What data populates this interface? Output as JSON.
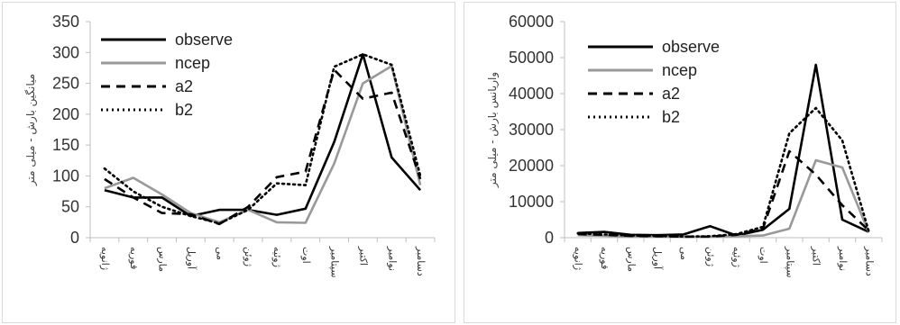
{
  "chart_data": [
    {
      "type": "line",
      "ylabel": "میانگین بارش - میلی متر",
      "ylim": [
        0,
        350
      ],
      "yticks": [
        0,
        50,
        100,
        150,
        200,
        250,
        300,
        350
      ],
      "categories": [
        "ژانویه",
        "فوریه",
        "مارس",
        "آوریل",
        "می",
        "ژوئن",
        "ژوئیه",
        "اوت",
        "سپتامبر",
        "اکتبر",
        "نوامبر",
        "دسامبر"
      ],
      "legend_position": "top-left",
      "grid": false,
      "series": [
        {
          "name": "observe",
          "color": "#000000",
          "style": "solid",
          "values": [
            77,
            65,
            65,
            35,
            45,
            45,
            37,
            47,
            155,
            297,
            130,
            77
          ]
        },
        {
          "name": "ncep",
          "color": "#999999",
          "style": "solid",
          "values": [
            80,
            97,
            70,
            40,
            25,
            45,
            25,
            24,
            120,
            250,
            278,
            85
          ]
        },
        {
          "name": "a2",
          "color": "#000000",
          "style": "dash",
          "values": [
            95,
            65,
            40,
            38,
            22,
            50,
            98,
            107,
            272,
            225,
            235,
            95
          ]
        },
        {
          "name": "b2",
          "color": "#000000",
          "style": "dot",
          "values": [
            112,
            75,
            50,
            35,
            23,
            45,
            88,
            85,
            277,
            297,
            280,
            100
          ]
        }
      ]
    },
    {
      "type": "line",
      "ylabel": "واریانس بارش - میلی متر",
      "ylim": [
        0,
        60000
      ],
      "yticks": [
        0,
        10000,
        20000,
        30000,
        40000,
        50000,
        60000
      ],
      "categories": [
        "ژانویه",
        "فوریه",
        "مارس",
        "آوریل",
        "می",
        "ژوئن",
        "ژوئیه",
        "اوت",
        "سپتامبر",
        "اکتبر",
        "نوامبر",
        "دسامبر"
      ],
      "legend_position": "top-left",
      "grid": false,
      "series": [
        {
          "name": "observe",
          "color": "#000000",
          "style": "solid",
          "values": [
            1300,
            1600,
            800,
            700,
            900,
            3200,
            600,
            2200,
            8000,
            48000,
            5000,
            1600
          ]
        },
        {
          "name": "ncep",
          "color": "#999999",
          "style": "solid",
          "values": [
            700,
            500,
            300,
            300,
            200,
            300,
            400,
            600,
            2500,
            21500,
            19500,
            1500
          ]
        },
        {
          "name": "a2",
          "color": "#000000",
          "style": "dash",
          "values": [
            1000,
            800,
            500,
            400,
            300,
            300,
            800,
            2500,
            24000,
            17500,
            9000,
            2000
          ]
        },
        {
          "name": "b2",
          "color": "#000000",
          "style": "dot",
          "values": [
            1200,
            900,
            600,
            500,
            300,
            400,
            1000,
            3000,
            29000,
            36000,
            27000,
            1800
          ]
        }
      ]
    }
  ]
}
